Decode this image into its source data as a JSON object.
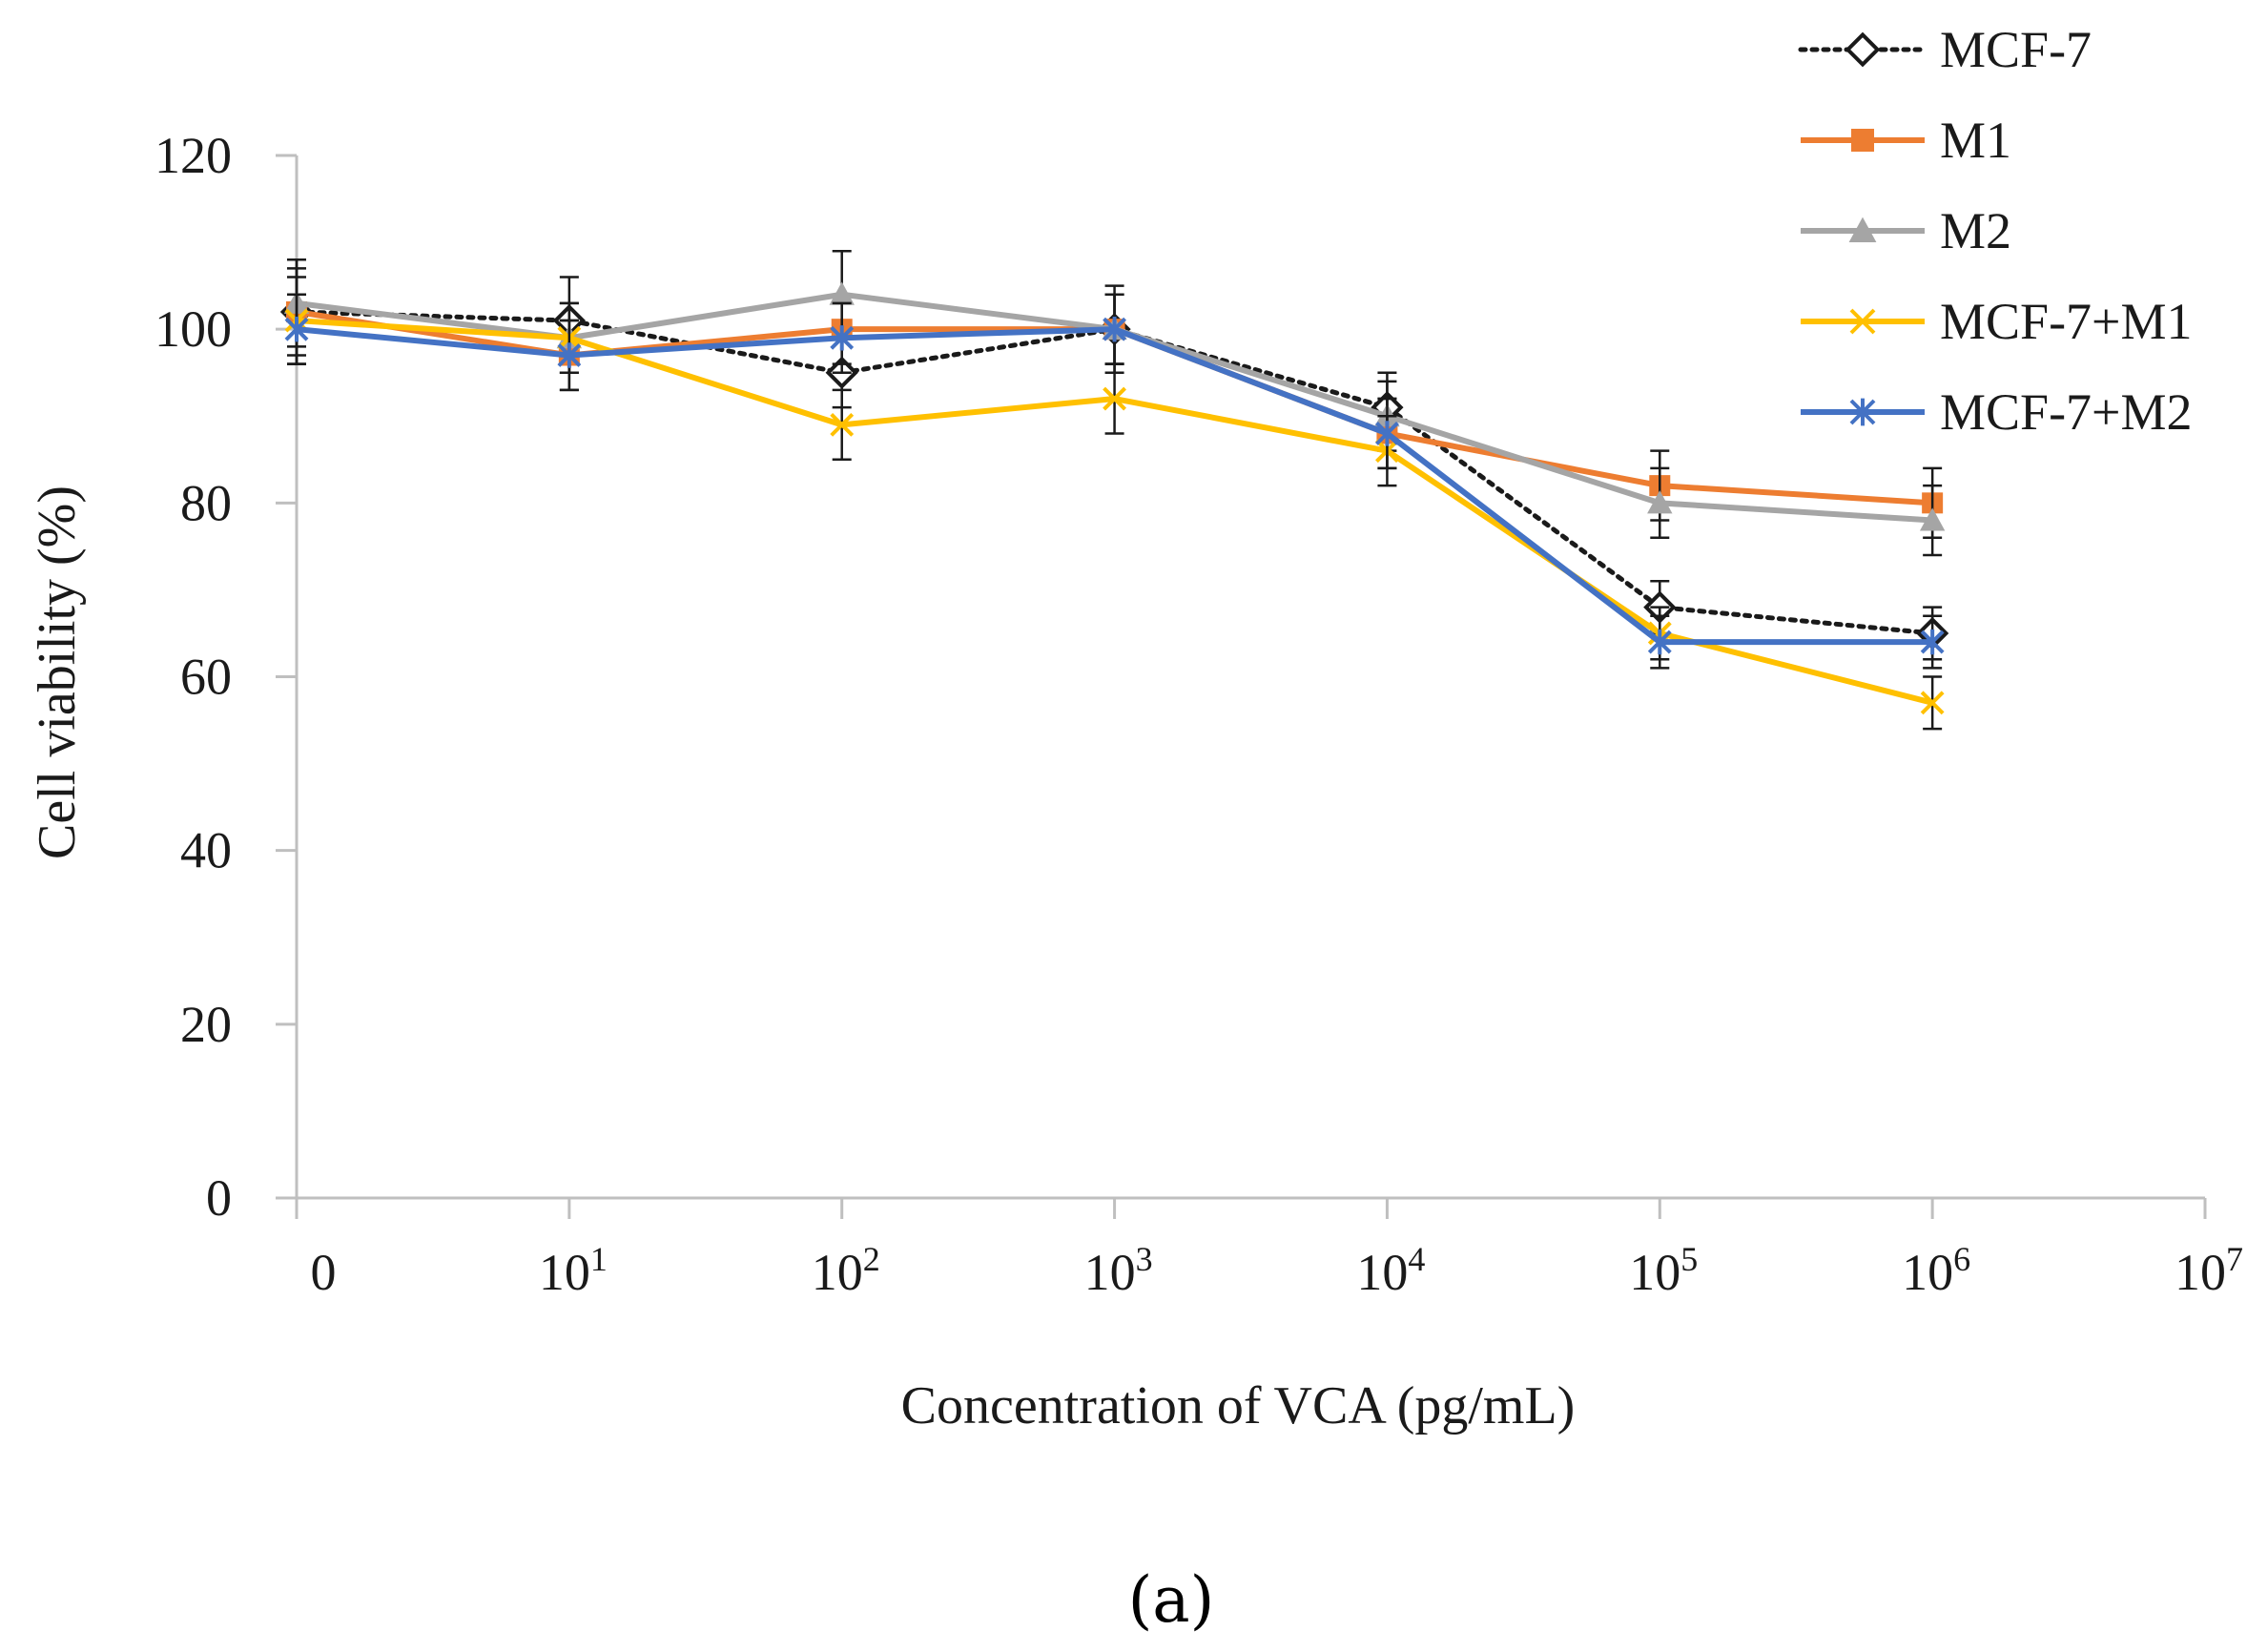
{
  "chart_data": {
    "type": "line",
    "panel_label": "(a)",
    "xlabel": "Concentration of VCA (pg/mL)",
    "ylabel": "Cell viability (%)",
    "ylim": [
      0,
      120
    ],
    "yticks": [
      "0",
      "20",
      "40",
      "60",
      "80",
      "100",
      "120"
    ],
    "xticks": [
      {
        "base": "0",
        "exp": ""
      },
      {
        "base": "10",
        "exp": "1"
      },
      {
        "base": "10",
        "exp": "2"
      },
      {
        "base": "10",
        "exp": "3"
      },
      {
        "base": "10",
        "exp": "4"
      },
      {
        "base": "10",
        "exp": "5"
      },
      {
        "base": "10",
        "exp": "6"
      },
      {
        "base": "10",
        "exp": "7"
      }
    ],
    "x": [
      "0",
      "10^1",
      "10^2",
      "10^3",
      "10^4",
      "10^5",
      "10^6"
    ],
    "legend_position": "top-right",
    "series": [
      {
        "name": "MCF-7",
        "color": "#1a1a1a",
        "dash": "dotted",
        "marker": "diamond-open",
        "values": [
          102,
          101,
          95,
          100,
          91,
          68,
          65
        ],
        "errors": [
          6,
          5,
          4,
          5,
          4,
          3,
          3
        ]
      },
      {
        "name": "M1",
        "color": "#ED7D31",
        "dash": "solid",
        "marker": "square",
        "values": [
          102,
          97,
          100,
          100,
          88,
          82,
          80
        ],
        "errors": [
          5,
          4,
          4,
          4,
          4,
          4,
          4
        ]
      },
      {
        "name": "M2",
        "color": "#A5A5A5",
        "dash": "solid",
        "marker": "triangle",
        "values": [
          103,
          99,
          104,
          100,
          90,
          80,
          78
        ],
        "errors": [
          5,
          4,
          5,
          4,
          4,
          4,
          4
        ]
      },
      {
        "name": "MCF-7+M1",
        "color": "#FFC000",
        "dash": "solid",
        "marker": "x",
        "values": [
          101,
          99,
          89,
          92,
          86,
          65,
          57
        ],
        "errors": [
          5,
          4,
          4,
          4,
          4,
          3,
          3
        ]
      },
      {
        "name": "MCF-7+M2",
        "color": "#4472C4",
        "dash": "solid",
        "marker": "asterisk",
        "values": [
          100,
          97,
          99,
          100,
          88,
          64,
          64
        ],
        "errors": [
          4,
          4,
          4,
          4,
          4,
          3,
          3
        ]
      }
    ]
  }
}
